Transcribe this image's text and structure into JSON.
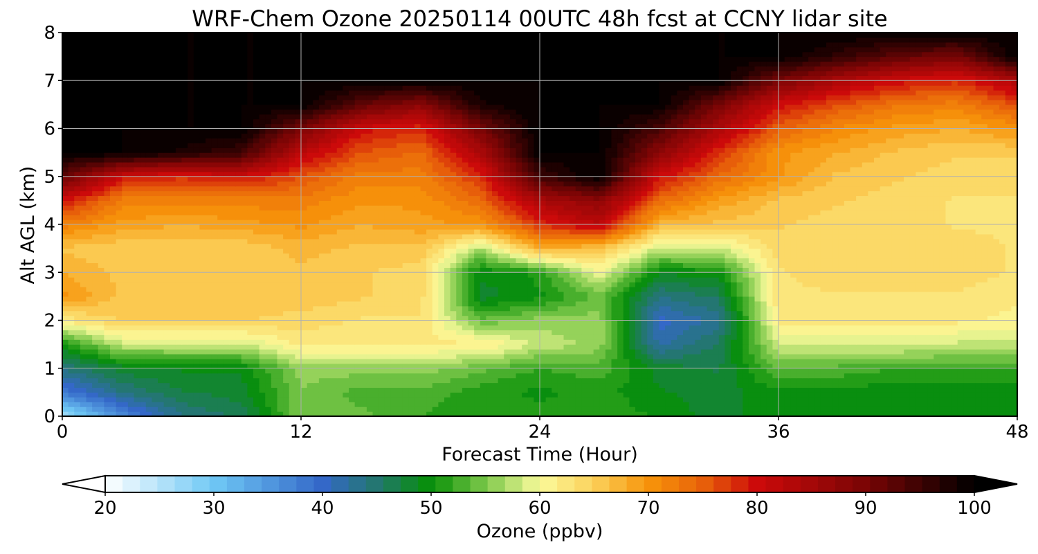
{
  "chart_data": {
    "type": "heatmap",
    "title": "WRF-Chem Ozone  20250114 00UTC 48h fcst at CCNY lidar site",
    "xlabel": "Forecast Time (Hour)",
    "ylabel": "Alt AGL (km)",
    "xlim": [
      0,
      48
    ],
    "ylim": [
      0,
      8
    ],
    "x_ticks": [
      "0",
      "12",
      "24",
      "36",
      "48"
    ],
    "y_ticks": [
      "0",
      "1",
      "2",
      "3",
      "4",
      "5",
      "6",
      "7",
      "8"
    ],
    "grid": true,
    "colorbar": {
      "label": "Ozone  (ppbv)",
      "range": [
        20,
        100
      ],
      "ticks": [
        "20",
        "30",
        "40",
        "50",
        "60",
        "70",
        "80",
        "90",
        "100"
      ],
      "extend": "both",
      "stops": [
        {
          "value": 20,
          "color": "#ffffff"
        },
        {
          "value": 30,
          "color": "#6fc8f5"
        },
        {
          "value": 40,
          "color": "#3468c8"
        },
        {
          "value": 45,
          "color": "#23776e"
        },
        {
          "value": 50,
          "color": "#079007"
        },
        {
          "value": 55,
          "color": "#7cc84a"
        },
        {
          "value": 60,
          "color": "#fbfb9c"
        },
        {
          "value": 65,
          "color": "#fbd05a"
        },
        {
          "value": 70,
          "color": "#f7940a"
        },
        {
          "value": 75,
          "color": "#e8620a"
        },
        {
          "value": 80,
          "color": "#cc0a0a"
        },
        {
          "value": 90,
          "color": "#7a0505"
        },
        {
          "value": 100,
          "color": "#000000"
        }
      ]
    },
    "x": [
      0,
      3,
      6,
      9,
      12,
      15,
      18,
      21,
      24,
      27,
      30,
      33,
      36,
      39,
      42,
      45,
      48
    ],
    "y": [
      0,
      0.5,
      1,
      1.5,
      2,
      2.5,
      3,
      3.5,
      4,
      4.5,
      5,
      5.5,
      6,
      6.5,
      7,
      7.5,
      8
    ],
    "z_ppbv": [
      [
        26,
        36,
        44,
        46,
        55,
        54,
        52,
        51,
        51,
        52,
        50,
        48,
        50,
        50,
        50,
        50,
        50
      ],
      [
        38,
        44,
        47,
        48,
        55,
        53,
        53,
        51,
        50,
        51,
        49,
        48,
        50,
        50,
        49,
        49,
        49
      ],
      [
        44,
        48,
        49,
        49,
        56,
        56,
        56,
        54,
        52,
        53,
        48,
        47,
        54,
        53,
        52,
        52,
        52
      ],
      [
        50,
        58,
        58,
        58,
        62,
        62,
        62,
        62,
        58,
        56,
        42,
        46,
        58,
        59,
        59,
        58,
        58
      ],
      [
        62,
        65,
        65,
        65,
        64,
        63,
        63,
        54,
        56,
        56,
        40,
        43,
        62,
        62,
        62,
        62,
        61
      ],
      [
        70,
        66,
        66,
        66,
        66,
        65,
        64,
        48,
        50,
        54,
        44,
        46,
        63,
        63,
        63,
        63,
        62
      ],
      [
        68,
        66,
        66,
        66,
        66,
        65,
        64,
        49,
        51,
        60,
        49,
        50,
        63,
        64,
        64,
        64,
        63
      ],
      [
        66,
        65,
        65,
        65,
        67,
        66,
        66,
        57,
        68,
        66,
        58,
        58,
        64,
        64,
        64,
        64,
        63
      ],
      [
        72,
        69,
        68,
        69,
        70,
        68,
        69,
        70,
        78,
        82,
        67,
        66,
        65,
        64,
        64,
        63,
        63
      ],
      [
        80,
        72,
        72,
        72,
        72,
        70,
        70,
        74,
        84,
        88,
        74,
        69,
        66,
        65,
        64,
        63,
        63
      ],
      [
        92,
        80,
        78,
        80,
        76,
        72,
        72,
        78,
        95,
        100,
        80,
        74,
        70,
        66,
        65,
        64,
        64
      ],
      [
        100,
        100,
        98,
        95,
        82,
        76,
        74,
        84,
        100,
        100,
        88,
        78,
        70,
        68,
        66,
        65,
        65
      ],
      [
        100,
        100,
        100,
        100,
        90,
        80,
        78,
        90,
        100,
        100,
        94,
        84,
        75,
        71,
        69,
        68,
        70
      ],
      [
        100,
        100,
        100,
        100,
        100,
        92,
        88,
        98,
        100,
        100,
        100,
        90,
        80,
        76,
        73,
        72,
        76
      ],
      [
        100,
        100,
        100,
        100,
        100,
        100,
        100,
        100,
        100,
        100,
        100,
        100,
        90,
        84,
        80,
        78,
        84
      ],
      [
        100,
        100,
        100,
        100,
        100,
        100,
        100,
        100,
        100,
        100,
        100,
        100,
        100,
        96,
        92,
        90,
        100
      ],
      [
        100,
        100,
        100,
        100,
        100,
        100,
        100,
        100,
        100,
        100,
        100,
        100,
        100,
        100,
        100,
        100,
        100
      ]
    ]
  }
}
